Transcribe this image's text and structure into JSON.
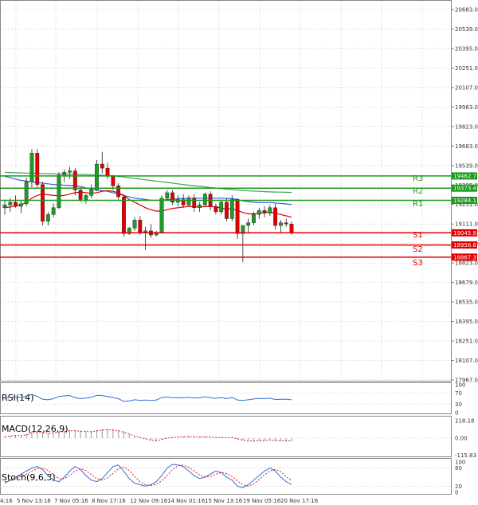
{
  "chart_data": {
    "type": "candlestick",
    "price_axis": {
      "ticks": [
        "20683.0",
        "20539.0",
        "20395.0",
        "20251.0",
        "20107.0",
        "19963.0",
        "19823.0",
        "19683.0",
        "19539.0",
        "19395.0",
        "19251.0",
        "19111.0",
        "18967.0",
        "18823.0",
        "18679.0",
        "18535.0",
        "18395.0",
        "18251.0",
        "18107.0",
        "17967.0"
      ],
      "range": [
        17967,
        20683
      ]
    },
    "time_axis": {
      "ticks": [
        "4:16",
        "5 Nov 13:16",
        "7 Nov 05:16",
        "8 Nov 17:16",
        "12 Nov 09:16",
        "14 Nov 01:16",
        "15 Nov 13:16",
        "19 Nov 05:16",
        "20 Nov 17:16"
      ]
    },
    "levels": [
      {
        "name": "R3",
        "value": 19462.7,
        "label": "19462.7",
        "color": "#1a9a1a"
      },
      {
        "name": "R2",
        "value": 19373.4,
        "label": "19373.4",
        "color": "#1a9a1a"
      },
      {
        "name": "R1",
        "value": 19284.1,
        "label": "19284.1",
        "color": "#1a9a1a"
      },
      {
        "name": "",
        "value": 19045.9,
        "label": "19045.9",
        "color": "#e00000"
      },
      {
        "name": "S1",
        "value": 18956.6,
        "label": "18956.6",
        "color": "#e00000"
      },
      {
        "name": "S2",
        "value": 18867.3,
        "label": "18867.3",
        "color": "#e00000"
      },
      {
        "name": "S3",
        "value": null,
        "label": "",
        "color": "#e00000"
      }
    ],
    "candles": [
      {
        "o": 19230,
        "h": 19290,
        "l": 19180,
        "c": 19250
      },
      {
        "o": 19250,
        "h": 19300,
        "l": 19200,
        "c": 19270
      },
      {
        "o": 19270,
        "h": 19320,
        "l": 19230,
        "c": 19240
      },
      {
        "o": 19240,
        "h": 19280,
        "l": 19190,
        "c": 19260
      },
      {
        "o": 19260,
        "h": 19450,
        "l": 19240,
        "c": 19420
      },
      {
        "o": 19420,
        "h": 19660,
        "l": 19380,
        "c": 19630
      },
      {
        "o": 19630,
        "h": 19660,
        "l": 19380,
        "c": 19400
      },
      {
        "o": 19400,
        "h": 19420,
        "l": 19100,
        "c": 19130
      },
      {
        "o": 19130,
        "h": 19200,
        "l": 19100,
        "c": 19180
      },
      {
        "o": 19180,
        "h": 19260,
        "l": 19160,
        "c": 19230
      },
      {
        "o": 19230,
        "h": 19490,
        "l": 19220,
        "c": 19470
      },
      {
        "o": 19470,
        "h": 19510,
        "l": 19420,
        "c": 19490
      },
      {
        "o": 19490,
        "h": 19530,
        "l": 19440,
        "c": 19500
      },
      {
        "o": 19500,
        "h": 19520,
        "l": 19320,
        "c": 19360
      },
      {
        "o": 19360,
        "h": 19380,
        "l": 19270,
        "c": 19290
      },
      {
        "o": 19290,
        "h": 19330,
        "l": 19260,
        "c": 19320
      },
      {
        "o": 19320,
        "h": 19400,
        "l": 19300,
        "c": 19360
      },
      {
        "o": 19360,
        "h": 19580,
        "l": 19350,
        "c": 19550
      },
      {
        "o": 19550,
        "h": 19640,
        "l": 19480,
        "c": 19520
      },
      {
        "o": 19520,
        "h": 19560,
        "l": 19440,
        "c": 19460
      },
      {
        "o": 19460,
        "h": 19470,
        "l": 19360,
        "c": 19390
      },
      {
        "o": 19390,
        "h": 19410,
        "l": 19290,
        "c": 19310
      },
      {
        "o": 19310,
        "h": 19330,
        "l": 19020,
        "c": 19040
      },
      {
        "o": 19040,
        "h": 19090,
        "l": 19030,
        "c": 19080
      },
      {
        "o": 19080,
        "h": 19160,
        "l": 19060,
        "c": 19140
      },
      {
        "o": 19140,
        "h": 19170,
        "l": 19030,
        "c": 19050
      },
      {
        "o": 19050,
        "h": 19090,
        "l": 18920,
        "c": 19060
      },
      {
        "o": 19060,
        "h": 19110,
        "l": 19010,
        "c": 19030
      },
      {
        "o": 19030,
        "h": 19060,
        "l": 19020,
        "c": 19050
      },
      {
        "o": 19050,
        "h": 19320,
        "l": 19040,
        "c": 19300
      },
      {
        "o": 19300,
        "h": 19360,
        "l": 19280,
        "c": 19340
      },
      {
        "o": 19340,
        "h": 19360,
        "l": 19250,
        "c": 19270
      },
      {
        "o": 19270,
        "h": 19320,
        "l": 19240,
        "c": 19290
      },
      {
        "o": 19290,
        "h": 19330,
        "l": 19230,
        "c": 19250
      },
      {
        "o": 19250,
        "h": 19320,
        "l": 19240,
        "c": 19300
      },
      {
        "o": 19300,
        "h": 19330,
        "l": 19200,
        "c": 19230
      },
      {
        "o": 19230,
        "h": 19270,
        "l": 19200,
        "c": 19250
      },
      {
        "o": 19250,
        "h": 19340,
        "l": 19240,
        "c": 19330
      },
      {
        "o": 19330,
        "h": 19350,
        "l": 19210,
        "c": 19240
      },
      {
        "o": 19240,
        "h": 19260,
        "l": 19180,
        "c": 19200
      },
      {
        "o": 19200,
        "h": 19290,
        "l": 19180,
        "c": 19270
      },
      {
        "o": 19270,
        "h": 19300,
        "l": 19130,
        "c": 19150
      },
      {
        "o": 19150,
        "h": 19320,
        "l": 19130,
        "c": 19290
      },
      {
        "o": 19290,
        "h": 19300,
        "l": 19000,
        "c": 19040
      },
      {
        "o": 19040,
        "h": 19100,
        "l": 18830,
        "c": 19100
      },
      {
        "o": 19100,
        "h": 19150,
        "l": 19040,
        "c": 19120
      },
      {
        "o": 19120,
        "h": 19200,
        "l": 19100,
        "c": 19180
      },
      {
        "o": 19180,
        "h": 19230,
        "l": 19150,
        "c": 19210
      },
      {
        "o": 19210,
        "h": 19240,
        "l": 19160,
        "c": 19190
      },
      {
        "o": 19190,
        "h": 19250,
        "l": 19170,
        "c": 19230
      },
      {
        "o": 19230,
        "h": 19260,
        "l": 19070,
        "c": 19100
      },
      {
        "o": 19100,
        "h": 19140,
        "l": 19050,
        "c": 19120
      },
      {
        "o": 19120,
        "h": 19150,
        "l": 19090,
        "c": 19110
      },
      {
        "o": 19110,
        "h": 19130,
        "l": 19030,
        "c": 19050
      }
    ],
    "ma_red": [
      19230,
      19235,
      19245,
      19250,
      19270,
      19300,
      19320,
      19330,
      19325,
      19320,
      19318,
      19320,
      19330,
      19340,
      19345,
      19340,
      19335,
      19340,
      19350,
      19355,
      19350,
      19340,
      19320,
      19290,
      19270,
      19250,
      19230,
      19215,
      19205,
      19205,
      19215,
      19225,
      19230,
      19235,
      19240,
      19238,
      19235,
      19238,
      19240,
      19235,
      19228,
      19220,
      19222,
      19210,
      19195,
      19185,
      19185,
      19190,
      19195,
      19198,
      19190,
      19180,
      19170,
      19160
    ],
    "ma_blue": [
      19460,
      19450,
      19440,
      19430,
      19425,
      19420,
      19415,
      19410,
      19405,
      19400,
      19398,
      19395,
      19392,
      19390,
      19385,
      19375,
      19365,
      19360,
      19355,
      19350,
      19340,
      19330,
      19320,
      19310,
      19300,
      19295,
      19290,
      19285,
      19285,
      19285,
      19290,
      19292,
      19295,
      19298,
      19300,
      19300,
      19300,
      19300,
      19300,
      19300,
      19300,
      19298,
      19296,
      19290,
      19280,
      19275,
      19270,
      19268,
      19268,
      19268,
      19265,
      19262,
      19258,
      19254
    ],
    "ma_green": [
      19490,
      19488,
      19486,
      19485,
      19484,
      19483,
      19482,
      19481,
      19480,
      19479,
      19478,
      19477,
      19476,
      19475,
      19474,
      19473,
      19472,
      19470,
      19468,
      19466,
      19463,
      19460,
      19455,
      19450,
      19445,
      19440,
      19435,
      19430,
      19425,
      19420,
      19415,
      19410,
      19405,
      19400,
      19395,
      19390,
      19386,
      19382,
      19378,
      19374,
      19370,
      19366,
      19363,
      19360,
      19357,
      19354,
      19352,
      19350,
      19348,
      19346,
      19345,
      19344,
      19343,
      19342
    ],
    "indicators": [
      {
        "label": "RSI(14)",
        "ticks": [
          "100",
          "70",
          "30",
          "0"
        ]
      },
      {
        "label": "MACD(12,26,9)",
        "ticks": [
          "118.18",
          "0.00",
          "-115.83"
        ]
      },
      {
        "label": "Stoch(9,6,3)",
        "ticks": [
          "100",
          "80",
          "20",
          "0"
        ]
      }
    ],
    "rsi": [
      52,
      55,
      56,
      54,
      60,
      65,
      58,
      48,
      46,
      50,
      58,
      60,
      61,
      54,
      50,
      52,
      55,
      62,
      61,
      58,
      54,
      50,
      40,
      42,
      46,
      44,
      45,
      44,
      45,
      54,
      56,
      53,
      54,
      53,
      55,
      52,
      53,
      57,
      53,
      51,
      54,
      50,
      55,
      45,
      44,
      46,
      49,
      51,
      50,
      52,
      47,
      48,
      48,
      46
    ],
    "macd_hist": [
      10,
      15,
      20,
      18,
      25,
      40,
      45,
      40,
      35,
      38,
      45,
      50,
      55,
      55,
      52,
      50,
      48,
      55,
      60,
      62,
      60,
      55,
      45,
      30,
      15,
      5,
      -5,
      -15,
      -20,
      -10,
      0,
      5,
      8,
      10,
      12,
      10,
      8,
      10,
      8,
      5,
      5,
      2,
      5,
      -5,
      -15,
      -20,
      -22,
      -20,
      -18,
      -15,
      -18,
      -20,
      -20,
      -22
    ],
    "stoch_k": [
      30,
      40,
      50,
      60,
      70,
      80,
      85,
      75,
      55,
      40,
      35,
      50,
      70,
      85,
      75,
      55,
      40,
      35,
      45,
      65,
      85,
      90,
      70,
      45,
      30,
      25,
      20,
      25,
      35,
      55,
      80,
      92,
      90,
      85,
      70,
      55,
      45,
      50,
      60,
      70,
      65,
      50,
      40,
      20,
      15,
      25,
      40,
      55,
      70,
      80,
      70,
      50,
      35,
      25
    ],
    "stoch_d": [
      35,
      38,
      45,
      52,
      60,
      70,
      78,
      80,
      72,
      58,
      45,
      45,
      55,
      70,
      78,
      72,
      58,
      45,
      40,
      48,
      62,
      78,
      84,
      72,
      52,
      35,
      25,
      22,
      26,
      38,
      55,
      75,
      88,
      90,
      82,
      70,
      58,
      50,
      52,
      60,
      65,
      62,
      52,
      38,
      25,
      20,
      28,
      42,
      58,
      70,
      76,
      68,
      52,
      38
    ]
  }
}
